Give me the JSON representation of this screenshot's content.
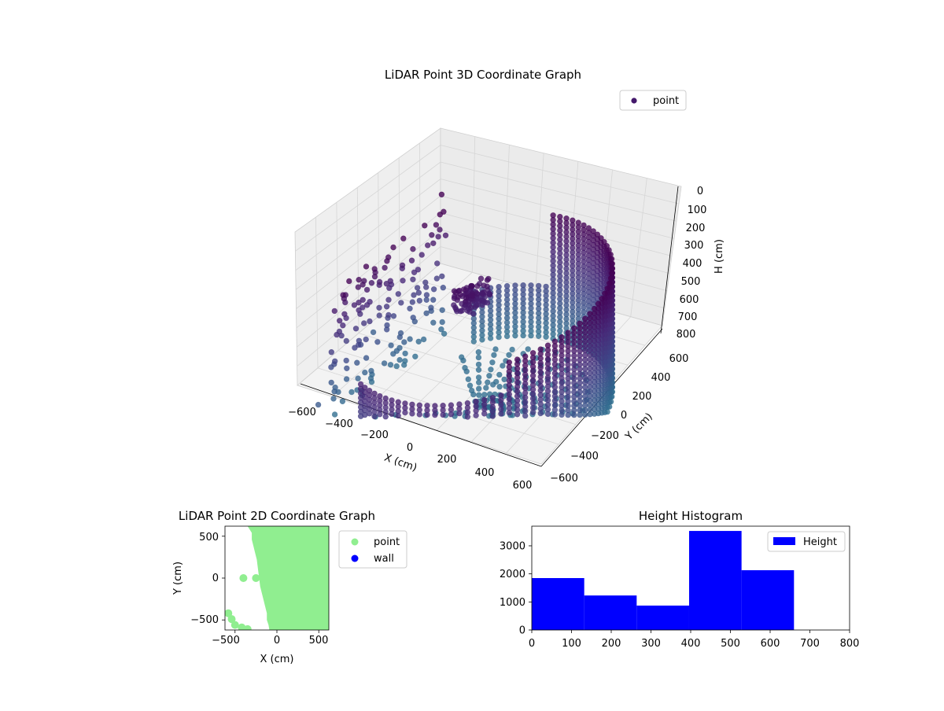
{
  "figure": {
    "background": "#ffffff"
  },
  "chart_data": [
    {
      "type": "scatter3d",
      "title": "LiDAR Point 3D Coordinate Graph",
      "xlabel": "X (cm)",
      "ylabel": "Y (cm)",
      "zlabel": "H (cm)",
      "xlim": [
        -650,
        650
      ],
      "ylim": [
        -650,
        650
      ],
      "zlim": [
        0,
        800
      ],
      "zaxis_inverted": true,
      "x_ticks": [
        "−600",
        "−400",
        "−200",
        "0",
        "200",
        "400",
        "600"
      ],
      "y_ticks": [
        "−600",
        "−400",
        "−200",
        "0",
        "200",
        "400",
        "600"
      ],
      "z_ticks": [
        "0",
        "100",
        "200",
        "300",
        "400",
        "500",
        "600",
        "700",
        "800"
      ],
      "grid": true,
      "legend": {
        "placement": "top-right",
        "entries": [
          {
            "label": "point",
            "color": "#44196b"
          }
        ]
      },
      "colormap": "viridis",
      "structure": {
        "ring_radius_cm": 570,
        "ring_height_range_cm": [
          0,
          660
        ],
        "ring_arc_deg": [
          -130,
          140
        ],
        "floor_height_cm": 620,
        "floor_radius_cm": 500,
        "cluster_center_cm": [
          -150,
          100,
          100
        ],
        "left_wall_x_cm": -600,
        "left_wall_y_range_cm": [
          -300,
          350
        ]
      }
    },
    {
      "type": "scatter",
      "title": "LiDAR Point 2D Coordinate Graph",
      "xlabel": "X (cm)",
      "ylabel": "Y (cm)",
      "xlim": [
        -620,
        620
      ],
      "ylim": [
        -620,
        620
      ],
      "x_ticks": [
        "−500",
        "0",
        "500"
      ],
      "y_ticks": [
        "−500",
        "0",
        "500"
      ],
      "legend": {
        "placement": "outside-right",
        "entries": [
          {
            "label": "point",
            "color": "#90ee90"
          },
          {
            "label": "wall",
            "color": "#0000ff"
          }
        ]
      },
      "series": [
        {
          "name": "point",
          "color": "#90ee90",
          "regions": {
            "boundary_x": [
              [
                -350,
                620
              ],
              [
                -300,
                540
              ],
              [
                -300,
                460
              ],
              [
                -280,
                380
              ],
              [
                -260,
                300
              ],
              [
                -240,
                220
              ],
              [
                -230,
                140
              ],
              [
                -220,
                60
              ],
              [
                -210,
                -20
              ],
              [
                -200,
                -100
              ],
              [
                -180,
                -180
              ],
              [
                -160,
                -260
              ],
              [
                -140,
                -340
              ],
              [
                -120,
                -420
              ],
              [
                -120,
                -500
              ],
              [
                -100,
                -560
              ],
              [
                -90,
                -620
              ]
            ],
            "dots": [
              {
                "x": -400,
                "y": 0
              },
              {
                "x": -250,
                "y": 0
              },
              {
                "x": -580,
                "y": -420
              },
              {
                "x": -540,
                "y": -490
              },
              {
                "x": -500,
                "y": -560
              },
              {
                "x": -420,
                "y": -590
              },
              {
                "x": -350,
                "y": -610
              }
            ]
          }
        },
        {
          "name": "wall",
          "color": "#0000ff",
          "points": []
        }
      ]
    },
    {
      "type": "histogram",
      "title": "Height Histogram",
      "xlim": [
        0,
        800
      ],
      "ylim": [
        0,
        3700
      ],
      "x_ticks": [
        "0",
        "100",
        "200",
        "300",
        "400",
        "500",
        "600",
        "700",
        "800"
      ],
      "y_ticks": [
        "0",
        "1000",
        "2000",
        "3000"
      ],
      "legend": {
        "placement": "top-right",
        "entries": [
          {
            "label": "Height",
            "color": "#0000ff"
          }
        ]
      },
      "bins": [
        0,
        132,
        264,
        396,
        528,
        660
      ],
      "counts": [
        1850,
        1230,
        870,
        3530,
        2130
      ],
      "color": "#0000ff"
    }
  ]
}
